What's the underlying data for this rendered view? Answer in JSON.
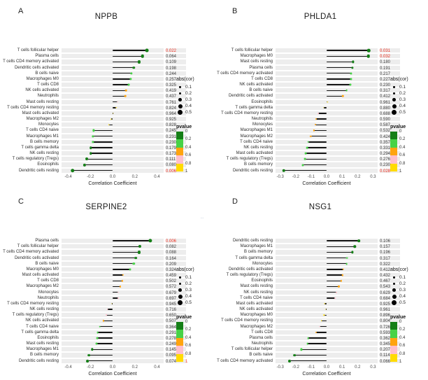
{
  "figure": {
    "background": "#ffffff",
    "significant_color": "#ee2f1f"
  },
  "legend": {
    "abs_cor": {
      "title": "abs(cor)",
      "sizes": [
        "0.1",
        "0.2",
        "0.3",
        "0.4",
        "0.5"
      ]
    },
    "pvalue": {
      "title": "pvalue",
      "ticks": [
        "0",
        "0.2",
        "0.4",
        "0.6",
        "0.8",
        "1"
      ],
      "colors": [
        "#157f17",
        "#46d246",
        "#ffa40e",
        "#ffbfca",
        "#ffdb00"
      ]
    }
  },
  "pvalue_bins": [
    {
      "max": 0.2,
      "color": "#157f17"
    },
    {
      "max": 0.4,
      "color": "#46d246"
    },
    {
      "max": 0.6,
      "color": "#ffa40e"
    },
    {
      "max": 0.8,
      "color": "#ffbfca"
    },
    {
      "max": 1.01,
      "color": "#ffdb00"
    }
  ],
  "chart_data": [
    {
      "type": "lollipop",
      "label": "A",
      "title": "NPPB",
      "xlabel": "Correlation Coefficient",
      "x_ticks": [
        "-0.4",
        "-0.2",
        "0.0",
        "0.2",
        "0.4"
      ],
      "xlim": [
        -0.46,
        0.46
      ],
      "pvalue_one_red": false,
      "note": "",
      "rows": [
        {
          "cell": "T cells follicular helper",
          "cor": 0.31,
          "pvalue": "0.022",
          "significant": true
        },
        {
          "cell": "Plasma cells",
          "cor": 0.27,
          "pvalue": "0.064",
          "significant": false
        },
        {
          "cell": "T cells CD4 memory activated",
          "cor": 0.24,
          "pvalue": "0.109",
          "significant": false
        },
        {
          "cell": "Dendritic cells activated",
          "cor": 0.19,
          "pvalue": "0.198",
          "significant": false
        },
        {
          "cell": "B cells naive",
          "cor": 0.17,
          "pvalue": "0.244",
          "significant": false
        },
        {
          "cell": "Macrophages M0",
          "cor": 0.165,
          "pvalue": "0.257",
          "significant": false
        },
        {
          "cell": "T cells CD8",
          "cor": 0.145,
          "pvalue": "0.325",
          "significant": false
        },
        {
          "cell": "NK cells activated",
          "cor": 0.12,
          "pvalue": "0.419",
          "significant": false
        },
        {
          "cell": "Neutrophils",
          "cor": 0.115,
          "pvalue": "0.437",
          "significant": false
        },
        {
          "cell": "Mast cells resting",
          "cor": 0.045,
          "pvalue": "0.761",
          "significant": false
        },
        {
          "cell": "T cells CD4 memory resting",
          "cor": 0.033,
          "pvalue": "0.824",
          "significant": false
        },
        {
          "cell": "Mast cells activated",
          "cor": 0.007,
          "pvalue": "0.964",
          "significant": false
        },
        {
          "cell": "Macrophages M2",
          "cor": -0.014,
          "pvalue": "0.925",
          "significant": false
        },
        {
          "cell": "Monocytes",
          "cor": -0.032,
          "pvalue": "0.828",
          "significant": false
        },
        {
          "cell": "T cells CD4 naive",
          "cor": -0.17,
          "pvalue": "0.245",
          "significant": false
        },
        {
          "cell": "Macrophages M1",
          "cor": -0.176,
          "pvalue": "0.231",
          "significant": false
        },
        {
          "cell": "B cells memory",
          "cor": -0.177,
          "pvalue": "0.230",
          "significant": false
        },
        {
          "cell": "T cells gamma delta",
          "cor": -0.196,
          "pvalue": "0.179",
          "significant": false
        },
        {
          "cell": "NK cells resting",
          "cor": -0.198,
          "pvalue": "0.173",
          "significant": false
        },
        {
          "cell": "T cells regulatory (Tregs)",
          "cor": -0.232,
          "pvalue": "0.111",
          "significant": false
        },
        {
          "cell": "Eosinophils",
          "cor": -0.255,
          "pvalue": "0.080",
          "significant": false
        },
        {
          "cell": "Dendritic cells resting",
          "cor": -0.36,
          "pvalue": "0.006",
          "significant": true
        }
      ]
    },
    {
      "type": "lollipop",
      "label": "B",
      "title": "PHLDA1",
      "xlabel": "Correlation Coefficient",
      "x_ticks": [
        "-0.3",
        "-0.2",
        "-0.1",
        "0.0",
        "0.1",
        "0.2",
        "0.3"
      ],
      "xlim": [
        -0.33,
        0.33
      ],
      "pvalue_one_red": false,
      "note": "",
      "rows": [
        {
          "cell": "T cells follicular helper",
          "cor": 0.272,
          "pvalue": "0.031",
          "significant": true
        },
        {
          "cell": "Macrophages M0",
          "cor": 0.27,
          "pvalue": "0.032",
          "significant": true
        },
        {
          "cell": "Mast cells resting",
          "cor": 0.172,
          "pvalue": "0.180",
          "significant": false
        },
        {
          "cell": "Plasma cells",
          "cor": 0.168,
          "pvalue": "0.191",
          "significant": false
        },
        {
          "cell": "T cells CD4 memory activated",
          "cor": 0.159,
          "pvalue": "0.217",
          "significant": false
        },
        {
          "cell": "T cells CD8",
          "cor": 0.156,
          "pvalue": "0.227",
          "significant": false
        },
        {
          "cell": "NK cells activated",
          "cor": 0.154,
          "pvalue": "0.230",
          "significant": false
        },
        {
          "cell": "B cells naive",
          "cor": 0.129,
          "pvalue": "0.317",
          "significant": false
        },
        {
          "cell": "Dendritic cells activated",
          "cor": 0.106,
          "pvalue": "0.412",
          "significant": false
        },
        {
          "cell": "Eosinophils",
          "cor": 0.006,
          "pvalue": "0.961",
          "significant": false
        },
        {
          "cell": "T cells gamma delta",
          "cor": -0.02,
          "pvalue": "0.880",
          "significant": false
        },
        {
          "cell": "T cells CD4 memory resting",
          "cor": -0.052,
          "pvalue": "0.688",
          "significant": false
        },
        {
          "cell": "Neutrophils",
          "cor": -0.07,
          "pvalue": "0.590",
          "significant": false
        },
        {
          "cell": "Monocytes",
          "cor": -0.071,
          "pvalue": "0.587",
          "significant": false
        },
        {
          "cell": "Macrophages M1",
          "cor": -0.081,
          "pvalue": "0.532",
          "significant": false
        },
        {
          "cell": "Macrophages M2",
          "cor": -0.103,
          "pvalue": "0.424",
          "significant": false
        },
        {
          "cell": "T cells CD4 naive",
          "cor": -0.119,
          "pvalue": "0.357",
          "significant": false
        },
        {
          "cell": "NK cells resting",
          "cor": -0.125,
          "pvalue": "0.331",
          "significant": false
        },
        {
          "cell": "Mast cells activated",
          "cor": -0.135,
          "pvalue": "0.294",
          "significant": false
        },
        {
          "cell": "T cells regulatory (Tregs)",
          "cor": -0.14,
          "pvalue": "0.276",
          "significant": false
        },
        {
          "cell": "B cells memory",
          "cor": -0.154,
          "pvalue": "0.230",
          "significant": false
        },
        {
          "cell": "Dendritic cells resting",
          "cor": -0.278,
          "pvalue": "0.028",
          "significant": true
        }
      ]
    },
    {
      "type": "lollipop",
      "label": "C",
      "title": "SERPINE2",
      "xlabel": "Correlation Coefficient",
      "x_ticks": [
        "-0.4",
        "-0.2",
        "0.0",
        "0.2",
        "0.4"
      ],
      "xlim": [
        -0.46,
        0.46
      ],
      "pvalue_one_red": true,
      "note": "…",
      "rows": [
        {
          "cell": "Plasma cells",
          "cor": 0.34,
          "pvalue": "0.006",
          "significant": true
        },
        {
          "cell": "T cells follicular helper",
          "cor": 0.245,
          "pvalue": "0.082",
          "significant": false
        },
        {
          "cell": "T cells CD4 memory activated",
          "cor": 0.24,
          "pvalue": "0.088",
          "significant": false
        },
        {
          "cell": "Dendritic cells activated",
          "cor": 0.21,
          "pvalue": "0.164",
          "significant": false
        },
        {
          "cell": "B cells naive",
          "cor": 0.19,
          "pvalue": "0.209",
          "significant": false
        },
        {
          "cell": "Macrophages M0",
          "cor": 0.155,
          "pvalue": "0.324",
          "significant": false
        },
        {
          "cell": "Mast cells activated",
          "cor": 0.095,
          "pvalue": "0.459",
          "significant": false
        },
        {
          "cell": "T cells CD8",
          "cor": 0.086,
          "pvalue": "0.502",
          "significant": false
        },
        {
          "cell": "Macrophages M2",
          "cor": 0.072,
          "pvalue": "0.572",
          "significant": false
        },
        {
          "cell": "Monocytes",
          "cor": 0.053,
          "pvalue": "0.679",
          "significant": false
        },
        {
          "cell": "Neutrophils",
          "cor": 0.05,
          "pvalue": "0.697",
          "significant": false
        },
        {
          "cell": "T cells CD4 memory resting",
          "cor": -0.009,
          "pvalue": "0.945",
          "significant": false
        },
        {
          "cell": "NK cells resting",
          "cor": -0.047,
          "pvalue": "0.716",
          "significant": false
        },
        {
          "cell": "T cells regulatory (Tregs)",
          "cor": -0.058,
          "pvalue": "0.650",
          "significant": false
        },
        {
          "cell": "NK cells activated",
          "cor": -0.085,
          "pvalue": "0.507",
          "significant": false
        },
        {
          "cell": "T cells CD4 naive",
          "cor": -0.116,
          "pvalue": "0.364",
          "significant": false
        },
        {
          "cell": "T cells gamma delta",
          "cor": -0.135,
          "pvalue": "0.291",
          "significant": false
        },
        {
          "cell": "Eosinophils",
          "cor": -0.139,
          "pvalue": "0.278",
          "significant": false
        },
        {
          "cell": "Mast cells resting",
          "cor": -0.147,
          "pvalue": "0.249",
          "significant": false
        },
        {
          "cell": "Macrophages M1",
          "cor": -0.185,
          "pvalue": "0.145",
          "significant": false
        },
        {
          "cell": "B cells memory",
          "cor": -0.212,
          "pvalue": "0.095",
          "significant": false
        },
        {
          "cell": "Dendritic cells resting",
          "cor": -0.227,
          "pvalue": "0.074",
          "significant": false
        }
      ]
    },
    {
      "type": "lollipop",
      "label": "D",
      "title": "NSG1",
      "xlabel": "Correlation Coefficient",
      "x_ticks": [
        "-0.3",
        "-0.2",
        "-0.1",
        "0.0",
        "0.1",
        "0.2",
        "0.3"
      ],
      "xlim": [
        -0.33,
        0.33
      ],
      "pvalue_one_red": false,
      "note": "",
      "rows": [
        {
          "cell": "Dendritic cells resting",
          "cor": 0.208,
          "pvalue": "0.106",
          "significant": false
        },
        {
          "cell": "Macrophages M1",
          "cor": 0.183,
          "pvalue": "0.157",
          "significant": false
        },
        {
          "cell": "B cells memory",
          "cor": 0.168,
          "pvalue": "0.196",
          "significant": false
        },
        {
          "cell": "T cells gamma delta",
          "cor": 0.131,
          "pvalue": "0.317",
          "significant": false
        },
        {
          "cell": "Monocytes",
          "cor": 0.129,
          "pvalue": "0.322",
          "significant": false
        },
        {
          "cell": "Dendritic cells activated",
          "cor": 0.107,
          "pvalue": "0.412",
          "significant": false
        },
        {
          "cell": "T cells regulatory (Tregs)",
          "cor": 0.102,
          "pvalue": "0.432",
          "significant": false
        },
        {
          "cell": "Eosinophils",
          "cor": 0.095,
          "pvalue": "0.467",
          "significant": false
        },
        {
          "cell": "Mast cells resting",
          "cor": 0.079,
          "pvalue": "0.543",
          "significant": false
        },
        {
          "cell": "NK cells resting",
          "cor": 0.063,
          "pvalue": "0.629",
          "significant": false
        },
        {
          "cell": "T cells CD4 naive",
          "cor": 0.053,
          "pvalue": "0.684",
          "significant": false
        },
        {
          "cell": "Mast cells activated",
          "cor": -0.012,
          "pvalue": "0.925",
          "significant": false
        },
        {
          "cell": "NK cells activated",
          "cor": -0.006,
          "pvalue": "0.961",
          "significant": false
        },
        {
          "cell": "Macrophages M0",
          "cor": -0.017,
          "pvalue": "0.896",
          "significant": false
        },
        {
          "cell": "T cells CD4 memory resting",
          "cor": -0.032,
          "pvalue": "0.804",
          "significant": false
        },
        {
          "cell": "Macrophages M2",
          "cor": -0.046,
          "pvalue": "0.726",
          "significant": false
        },
        {
          "cell": "T cells CD8",
          "cor": -0.07,
          "pvalue": "0.593",
          "significant": false
        },
        {
          "cell": "Plasma cells",
          "cor": -0.119,
          "pvalue": "0.362",
          "significant": false
        },
        {
          "cell": "Neutrophils",
          "cor": -0.123,
          "pvalue": "0.345",
          "significant": false
        },
        {
          "cell": "T cells follicular helper",
          "cor": -0.165,
          "pvalue": "0.207",
          "significant": false
        },
        {
          "cell": "B cells naive",
          "cor": -0.206,
          "pvalue": "0.114",
          "significant": false
        },
        {
          "cell": "T cells CD4 memory activated",
          "cor": -0.24,
          "pvalue": "0.066",
          "significant": false
        }
      ]
    }
  ]
}
